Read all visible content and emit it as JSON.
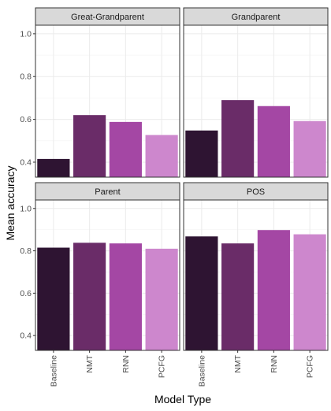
{
  "chart_data": {
    "type": "bar",
    "layout": "facet-grid-2x2",
    "xlabel": "Model Type",
    "ylabel": "Mean accuracy",
    "categories": [
      "Baseline",
      "NMT",
      "RNN",
      "PCFG"
    ],
    "colors": [
      "#2e1432",
      "#6a2c68",
      "#a447a4",
      "#cd87cd"
    ],
    "ylim": [
      0.33,
      1.04
    ],
    "yticks": [
      0.4,
      0.6,
      0.8,
      1.0
    ],
    "ytick_labels": [
      "0.4",
      "0.6",
      "0.8",
      "1.0"
    ],
    "grid": true,
    "legend": "none",
    "panels": [
      {
        "title": "Great-Grandparent",
        "values": [
          0.415,
          0.62,
          0.588,
          0.527
        ]
      },
      {
        "title": "Grandparent",
        "values": [
          0.548,
          0.69,
          0.662,
          0.592
        ]
      },
      {
        "title": "Parent",
        "values": [
          0.815,
          0.838,
          0.835,
          0.81
        ]
      },
      {
        "title": "POS",
        "values": [
          0.868,
          0.835,
          0.898,
          0.878
        ]
      }
    ]
  }
}
